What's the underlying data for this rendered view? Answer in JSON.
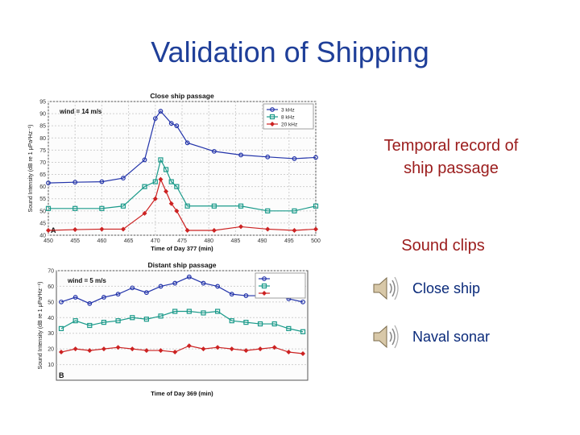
{
  "slide": {
    "title": "Validation of Shipping",
    "temporal_label_line1": "Temporal record of",
    "temporal_label_line2": "ship passage",
    "sound_clips_label": "Sound clips",
    "clips": [
      {
        "label": "Close ship",
        "icon": "speaker-icon"
      },
      {
        "label": "Naval sonar",
        "icon": "speaker-icon"
      }
    ],
    "title_color": "#1f3f99",
    "label_color": "#9b1c1c",
    "clip_text_color": "#0a2a7a"
  },
  "chart_data": [
    {
      "type": "line",
      "title": "Close ship passage",
      "panel_label": "A",
      "annotation": "wind = 14 m/s",
      "xlabel": "Time of Day 377 (min)",
      "ylabel": "Sound Intensity (dB re 1 μPa²Hz⁻¹)",
      "xlim": [
        450,
        500
      ],
      "ylim": [
        40,
        95
      ],
      "xticks": [
        450,
        455,
        460,
        465,
        470,
        475,
        480,
        485,
        490,
        495,
        500
      ],
      "yticks": [
        40,
        45,
        50,
        55,
        60,
        65,
        70,
        75,
        80,
        85,
        90,
        95
      ],
      "grid": true,
      "legend_position": "top-right",
      "series": [
        {
          "name": "3 kHz",
          "color": "#2233aa",
          "marker": "circle",
          "x": [
            450,
            455,
            460,
            464,
            468,
            470,
            471,
            473,
            474,
            476,
            481,
            486,
            491,
            496,
            500
          ],
          "y": [
            61.5,
            61.8,
            62,
            63.5,
            71,
            88,
            91,
            86,
            85,
            78,
            74.5,
            73,
            72.2,
            71.5,
            72
          ]
        },
        {
          "name": "8 kHz",
          "color": "#1a9a8a",
          "marker": "square",
          "x": [
            450,
            455,
            460,
            464,
            468,
            470,
            471,
            472,
            473,
            474,
            476,
            481,
            486,
            491,
            496,
            500
          ],
          "y": [
            51,
            51,
            51,
            52,
            60,
            62,
            71,
            67,
            62,
            60,
            52,
            52,
            52,
            50,
            50,
            52
          ]
        },
        {
          "name": "20 kHz",
          "color": "#cc2222",
          "marker": "diamond",
          "x": [
            450,
            455,
            460,
            464,
            468,
            470,
            471,
            472,
            473,
            474,
            476,
            481,
            486,
            491,
            496,
            500
          ],
          "y": [
            42,
            42.3,
            42.5,
            42.5,
            49,
            55,
            63,
            58,
            53,
            50,
            42,
            42,
            43.5,
            42.5,
            42,
            42.5
          ]
        }
      ]
    },
    {
      "type": "line",
      "title": "Distant ship passage",
      "panel_label": "B",
      "annotation": "wind = 5 m/s",
      "xlabel": "Time of Day 369 (min)",
      "ylabel": "Sound Intensity (dB re 1 μPa²Hz⁻¹)",
      "ylim": [
        0,
        70
      ],
      "yticks": [
        10,
        20,
        30,
        40,
        50,
        60,
        70
      ],
      "grid": true,
      "legend_position": "top-right",
      "series": [
        {
          "color": "#2233aa",
          "marker": "circle",
          "values": [
            50,
            53,
            49,
            53,
            55,
            59,
            56,
            60,
            62,
            66,
            62,
            60,
            55,
            54,
            54,
            55,
            52,
            50
          ]
        },
        {
          "color": "#1a9a8a",
          "marker": "square",
          "values": [
            33,
            38,
            35,
            37,
            38,
            40,
            39,
            41,
            44,
            44,
            43,
            44,
            38,
            37,
            36,
            36,
            33,
            31
          ]
        },
        {
          "color": "#cc2222",
          "marker": "diamond",
          "values": [
            18,
            20,
            19,
            20,
            21,
            20,
            19,
            19,
            18,
            22,
            20,
            21,
            20,
            19,
            20,
            21,
            18,
            17
          ]
        }
      ]
    }
  ]
}
